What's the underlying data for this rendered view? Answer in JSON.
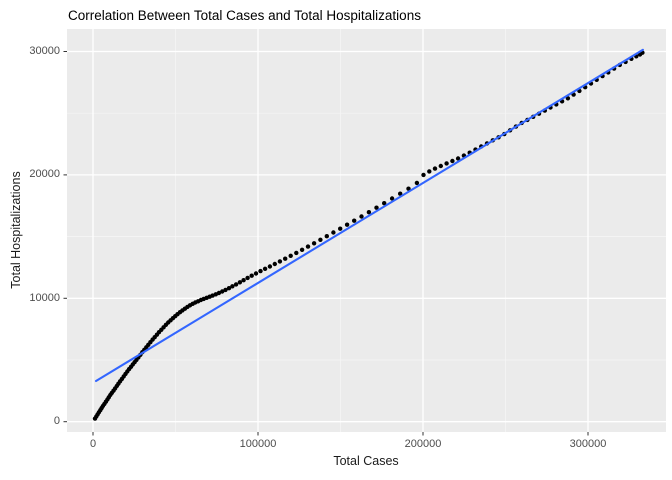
{
  "chart_data": {
    "type": "scatter",
    "title": "Correlation Between Total Cases and Total Hospitalizations",
    "xlabel": "Total Cases",
    "ylabel": "Total Hospitalizations",
    "legend": "none",
    "grid": true,
    "x_ticks": {
      "values": [
        0,
        100000,
        200000,
        300000
      ],
      "labels": [
        "0",
        "100000",
        "200000",
        "300000"
      ]
    },
    "y_ticks": {
      "values": [
        0,
        10000,
        20000,
        30000
      ],
      "labels": [
        "0",
        "10000",
        "20000",
        "30000"
      ]
    },
    "x_minor": [
      50000,
      150000,
      250000
    ],
    "y_minor": [
      5000,
      15000,
      25000
    ],
    "xlim": [
      -15758,
      347273
    ],
    "ylim": [
      -835,
      31823
    ],
    "colors": {
      "point": "#000000",
      "trend": "#3366FF",
      "panel_bg": "#EBEBEB",
      "grid_major": "#FFFFFF",
      "grid_minor": "#FFFFFF",
      "tick_mark": "#333333",
      "tick_label": "#4D4D4D",
      "axis_title": "#1A1A1A",
      "title": "#000000"
    },
    "trend_line": {
      "type": "lm",
      "points": [
        [
          1800,
          3300
        ],
        [
          70900,
          8890
        ],
        [
          333300,
          30140
        ]
      ]
    },
    "points": [
      [
        1200,
        250
      ],
      [
        2000,
        420
      ],
      [
        2800,
        590
      ],
      [
        3600,
        760
      ],
      [
        4400,
        930
      ],
      [
        5200,
        1100
      ],
      [
        6000,
        1270
      ],
      [
        6900,
        1440
      ],
      [
        7800,
        1620
      ],
      [
        8700,
        1800
      ],
      [
        9600,
        1980
      ],
      [
        10500,
        2160
      ],
      [
        11400,
        2330
      ],
      [
        12400,
        2510
      ],
      [
        13400,
        2700
      ],
      [
        14400,
        2890
      ],
      [
        15400,
        3080
      ],
      [
        16400,
        3270
      ],
      [
        17500,
        3470
      ],
      [
        18600,
        3670
      ],
      [
        19700,
        3870
      ],
      [
        20800,
        4070
      ],
      [
        21900,
        4260
      ],
      [
        23000,
        4450
      ],
      [
        24100,
        4640
      ],
      [
        25200,
        4820
      ],
      [
        26300,
        5000
      ],
      [
        27500,
        5210
      ],
      [
        28700,
        5420
      ],
      [
        29900,
        5630
      ],
      [
        31100,
        5830
      ],
      [
        32300,
        6030
      ],
      [
        33500,
        6230
      ],
      [
        34800,
        6440
      ],
      [
        36100,
        6650
      ],
      [
        37400,
        6850
      ],
      [
        38700,
        7050
      ],
      [
        40000,
        7250
      ],
      [
        41400,
        7450
      ],
      [
        42800,
        7650
      ],
      [
        44200,
        7850
      ],
      [
        45600,
        8040
      ],
      [
        47000,
        8220
      ],
      [
        48400,
        8390
      ],
      [
        49800,
        8550
      ],
      [
        51200,
        8710
      ],
      [
        52700,
        8870
      ],
      [
        54200,
        9020
      ],
      [
        55700,
        9160
      ],
      [
        57200,
        9300
      ],
      [
        58800,
        9430
      ],
      [
        60400,
        9550
      ],
      [
        62000,
        9660
      ],
      [
        63700,
        9760
      ],
      [
        65400,
        9860
      ],
      [
        67100,
        9950
      ],
      [
        68900,
        10040
      ],
      [
        70700,
        10130
      ],
      [
        72500,
        10220
      ],
      [
        74400,
        10320
      ],
      [
        76300,
        10430
      ],
      [
        78300,
        10550
      ],
      [
        80300,
        10680
      ],
      [
        82400,
        10820
      ],
      [
        84500,
        10970
      ],
      [
        86700,
        11130
      ],
      [
        89000,
        11300
      ],
      [
        91300,
        11470
      ],
      [
        93700,
        11650
      ],
      [
        96200,
        11830
      ],
      [
        98800,
        12010
      ],
      [
        101500,
        12200
      ],
      [
        104300,
        12390
      ],
      [
        107200,
        12580
      ],
      [
        110200,
        12780
      ],
      [
        113300,
        12990
      ],
      [
        116500,
        13210
      ],
      [
        119800,
        13440
      ],
      [
        123200,
        13680
      ],
      [
        126700,
        13930
      ],
      [
        130300,
        14190
      ],
      [
        134000,
        14460
      ],
      [
        137800,
        14740
      ],
      [
        141700,
        15030
      ],
      [
        145700,
        15330
      ],
      [
        149800,
        15640
      ],
      [
        154000,
        15960
      ],
      [
        158300,
        16290
      ],
      [
        162700,
        16630
      ],
      [
        167200,
        16980
      ],
      [
        171800,
        17340
      ],
      [
        176500,
        17710
      ],
      [
        181300,
        18090
      ],
      [
        186200,
        18480
      ],
      [
        191200,
        18880
      ],
      [
        196300,
        19350
      ],
      [
        200300,
        20000
      ],
      [
        203800,
        20280
      ],
      [
        207300,
        20510
      ],
      [
        210800,
        20720
      ],
      [
        214300,
        20930
      ],
      [
        217800,
        21130
      ],
      [
        221300,
        21330
      ],
      [
        224800,
        21560
      ],
      [
        228300,
        21800
      ],
      [
        231800,
        22050
      ],
      [
        235300,
        22300
      ],
      [
        238800,
        22550
      ],
      [
        242300,
        22800
      ],
      [
        245800,
        23050
      ],
      [
        249300,
        23310
      ],
      [
        252800,
        23610
      ],
      [
        256300,
        23910
      ],
      [
        259800,
        24210
      ],
      [
        263300,
        24460
      ],
      [
        266800,
        24710
      ],
      [
        270300,
        24960
      ],
      [
        273800,
        25210
      ],
      [
        277300,
        25460
      ],
      [
        280800,
        25710
      ],
      [
        284300,
        25960
      ],
      [
        287800,
        26210
      ],
      [
        291300,
        26510
      ],
      [
        294800,
        26810
      ],
      [
        298300,
        27110
      ],
      [
        301800,
        27410
      ],
      [
        305300,
        27710
      ],
      [
        308800,
        28010
      ],
      [
        312300,
        28310
      ],
      [
        315800,
        28610
      ],
      [
        319300,
        28910
      ],
      [
        322800,
        29160
      ],
      [
        326300,
        29410
      ],
      [
        329300,
        29610
      ],
      [
        331500,
        29760
      ],
      [
        333000,
        29900
      ]
    ]
  }
}
